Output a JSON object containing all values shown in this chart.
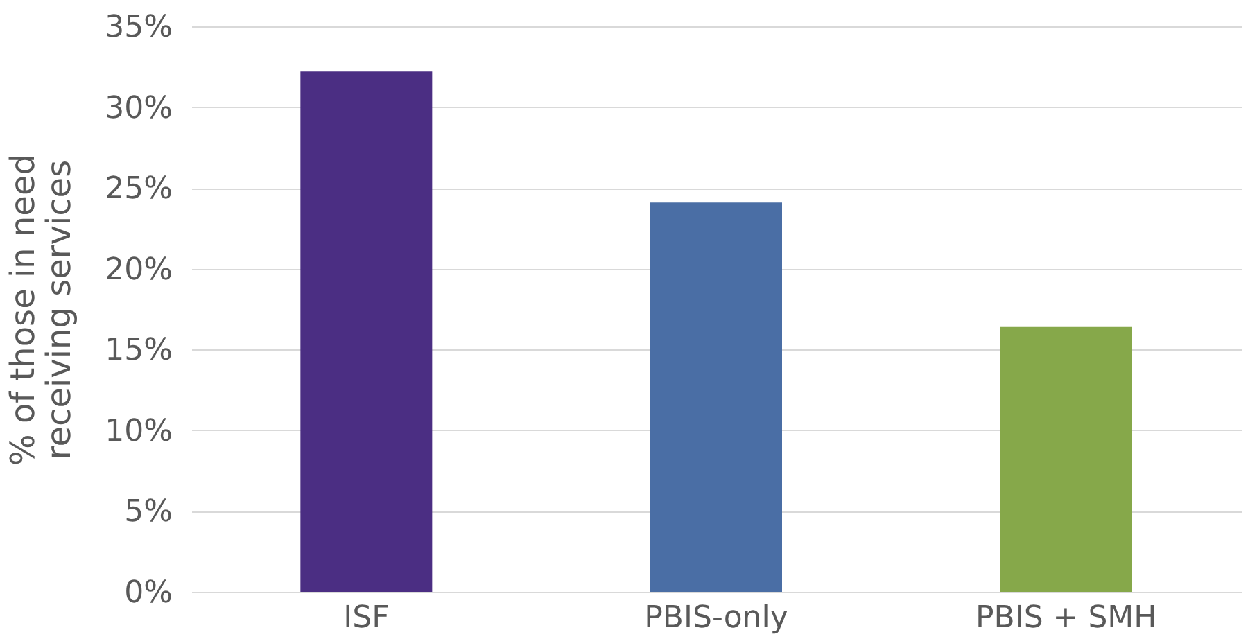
{
  "chart_data": {
    "type": "bar",
    "ylabel": "% of those in need\nreceiving services",
    "categories": [
      "ISF",
      "PBIS-only",
      "PBIS + SMH"
    ],
    "values": [
      32.2,
      24.1,
      16.4
    ],
    "colors": [
      "#4b2e83",
      "#4a6ea5",
      "#86a84a"
    ],
    "ylim": [
      0,
      35
    ],
    "yticks": [
      {
        "value": 0,
        "label": "0%"
      },
      {
        "value": 5,
        "label": "5%"
      },
      {
        "value": 10,
        "label": "10%"
      },
      {
        "value": 15,
        "label": "15%"
      },
      {
        "value": 20,
        "label": "20%"
      },
      {
        "value": 25,
        "label": "25%"
      },
      {
        "value": 30,
        "label": "30%"
      },
      {
        "value": 35,
        "label": "35%"
      }
    ],
    "grid": "y"
  }
}
